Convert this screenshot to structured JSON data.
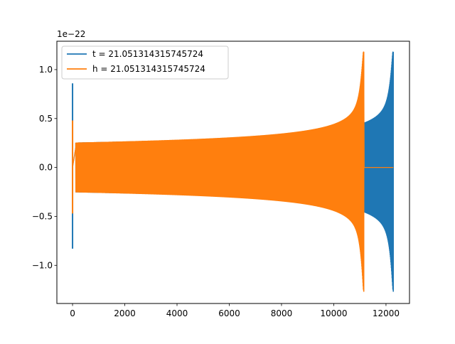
{
  "chart_data": {
    "type": "line",
    "offset_label": "1e−22",
    "xlim": [
      -600,
      12900
    ],
    "ylim": [
      -1.39,
      1.29
    ],
    "x_ticks": [
      0,
      2000,
      4000,
      6000,
      8000,
      10000,
      12000
    ],
    "x_tick_labels": [
      "0",
      "2000",
      "4000",
      "6000",
      "8000",
      "10000",
      "12000"
    ],
    "y_ticks": [
      -1.0,
      -0.5,
      0.0,
      0.5,
      1.0
    ],
    "y_tick_labels": [
      "−1.0",
      "−0.5",
      "0.0",
      "0.5",
      "1.0"
    ],
    "grid": false,
    "legend_position": "top-left",
    "series": [
      {
        "name": "t = 21.051314315745724",
        "color": "#1f77b4",
        "initial_spike": {
          "x": 0,
          "max": 0.86,
          "min": -0.83
        },
        "early_amplitude": 0.25,
        "peak_x": 12280,
        "peak_amplitude": 1.18,
        "peak_min": -1.27,
        "end_x": 12280
      },
      {
        "name": "h = 21.051314315745724",
        "color": "#ff7f0e",
        "initial_spike": {
          "x": 0,
          "max": 0.48,
          "min": -0.47
        },
        "early_amplitude": 0.25,
        "peak_x": 11150,
        "peak_amplitude": 1.18,
        "peak_min": -1.27,
        "end_x": 12280,
        "post_peak_value": 0.0
      }
    ]
  }
}
